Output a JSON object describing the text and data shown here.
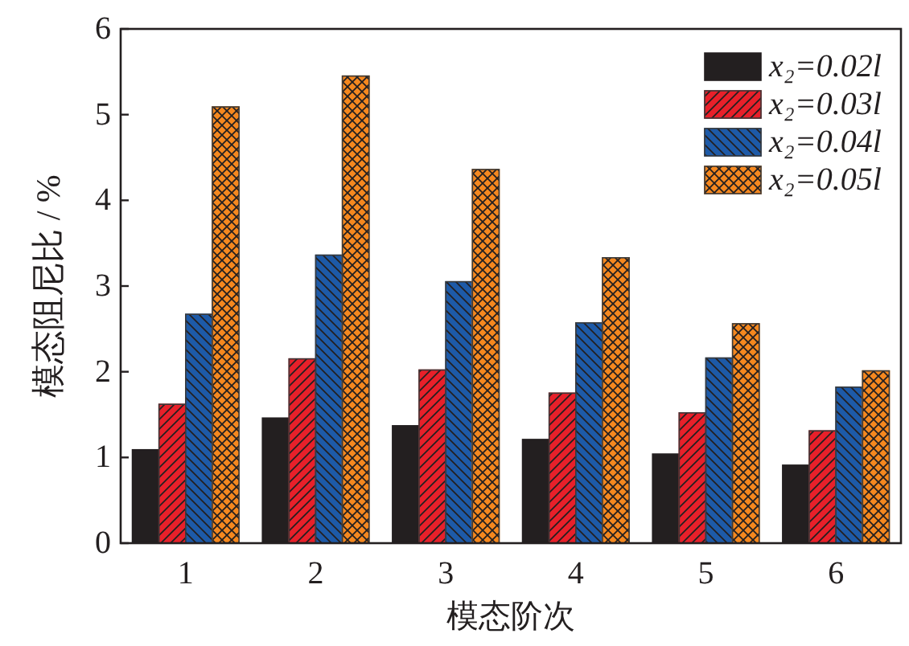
{
  "chart_data": {
    "type": "bar",
    "xlabel": "模态阶次",
    "ylabel": "模态阻尼比 / %",
    "categories": [
      "1",
      "2",
      "3",
      "4",
      "5",
      "6"
    ],
    "series": [
      {
        "name": "x₂=0.02l",
        "color": "#231f20",
        "values": [
          1.09,
          1.46,
          1.37,
          1.21,
          1.04,
          0.91
        ]
      },
      {
        "name": "x₂=0.03l",
        "color": "#e8202a",
        "values": [
          1.62,
          2.15,
          2.02,
          1.75,
          1.52,
          1.31
        ]
      },
      {
        "name": "x₂=0.04l",
        "color": "#1d5aa8",
        "values": [
          2.67,
          3.36,
          3.05,
          2.57,
          2.16,
          1.82
        ]
      },
      {
        "name": "x₂=0.05l",
        "color": "#f5881f",
        "values": [
          5.09,
          5.45,
          4.36,
          3.33,
          2.56,
          2.01
        ]
      }
    ],
    "ylim": [
      0,
      6
    ],
    "yticks": [
      0,
      1,
      2,
      3,
      4,
      5,
      6
    ],
    "legend": "top right"
  }
}
